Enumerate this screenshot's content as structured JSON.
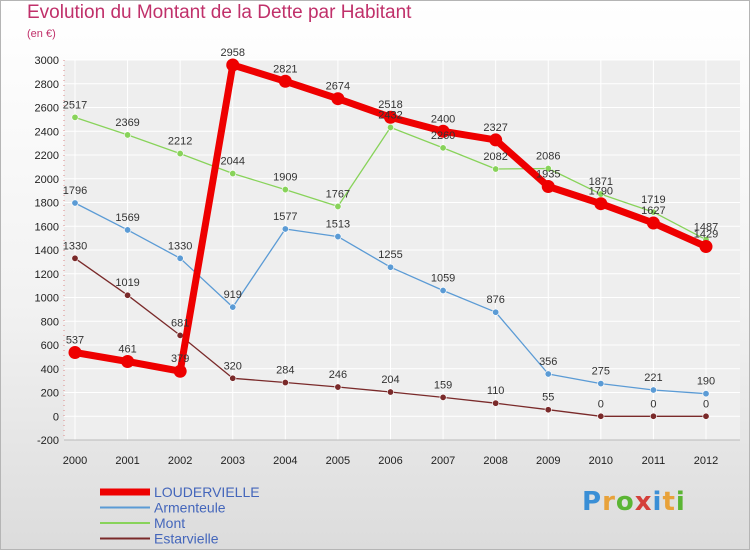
{
  "title": "Evolution du Montant de la Dette par Habitant",
  "subtitle": "(en €)",
  "logo": {
    "text": "Proxiti",
    "letter_colors": [
      "#3a8fd6",
      "#e8a23a",
      "#5bb534",
      "#d43f3a",
      "#3a8fd6",
      "#e8a23a",
      "#5bb534"
    ]
  },
  "chart_data": {
    "type": "line",
    "title": "Evolution du Montant de la Dette par Habitant",
    "ylabel": "(en €)",
    "x": [
      "2000",
      "2001",
      "2002",
      "2003",
      "2004",
      "2005",
      "2006",
      "2007",
      "2008",
      "2009",
      "2010",
      "2011",
      "2012"
    ],
    "ylim": [
      -200,
      3000
    ],
    "yticks": [
      -200,
      0,
      200,
      400,
      600,
      800,
      1000,
      1200,
      1400,
      1600,
      1800,
      2000,
      2200,
      2400,
      2600,
      2800,
      3000
    ],
    "grid": true,
    "legend_position": "bottom-left",
    "series": [
      {
        "name": "LOUDERVIELLE",
        "color": "#ee0000",
        "width": 7,
        "marker": 6.5,
        "values": [
          537,
          461,
          379,
          2958,
          2821,
          2674,
          2518,
          2400,
          2327,
          1935,
          1790,
          1627,
          1429
        ]
      },
      {
        "name": "Armenteule",
        "color": "#5b9bd5",
        "width": 1.3,
        "marker": 3.2,
        "values": [
          1796,
          1569,
          1330,
          919,
          1577,
          1513,
          1255,
          1059,
          876,
          356,
          275,
          221,
          190
        ]
      },
      {
        "name": "Mont",
        "color": "#88d35a",
        "width": 1.3,
        "marker": 3.2,
        "values": [
          2517,
          2369,
          2212,
          2044,
          1909,
          1767,
          2432,
          2260,
          2082,
          2086,
          1871,
          1719,
          1487
        ]
      },
      {
        "name": "Estarvielle",
        "color": "#7a2a2a",
        "width": 1.3,
        "marker": 3.2,
        "values": [
          1330,
          1019,
          681,
          320,
          284,
          246,
          204,
          159,
          110,
          55,
          0,
          0,
          0
        ]
      }
    ]
  }
}
